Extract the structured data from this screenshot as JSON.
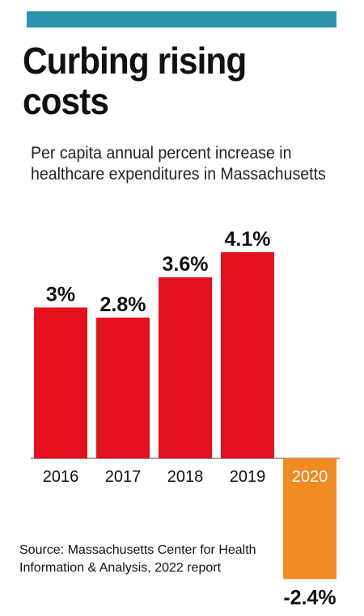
{
  "header": {
    "band_color": "#2a93ad",
    "title": "Curbing rising costs",
    "subtitle": "Per capita annual percent increase in healthcare expenditures in Massachusetts"
  },
  "colors": {
    "positive": "#e3101e",
    "negative": "#f08a21",
    "highlight_label": "#ffffff"
  },
  "chart_data": {
    "type": "bar",
    "title": "Curbing rising costs",
    "subtitle": "Per capita annual percent increase in healthcare expenditures in Massachusetts",
    "categories": [
      "2016",
      "2017",
      "2018",
      "2019",
      "2020"
    ],
    "values": [
      3,
      2.8,
      3.6,
      4.1,
      -2.4
    ],
    "value_labels": [
      "3%",
      "2.8%",
      "3.6%",
      "4.1%",
      "-2.4%"
    ],
    "xlabel": "",
    "ylabel": "",
    "ylim": [
      -2.4,
      4.1
    ],
    "grid": false,
    "legend": "none"
  },
  "source": {
    "text": "Source: Massachusetts Center for Health Information & Analysis, 2022 report"
  }
}
